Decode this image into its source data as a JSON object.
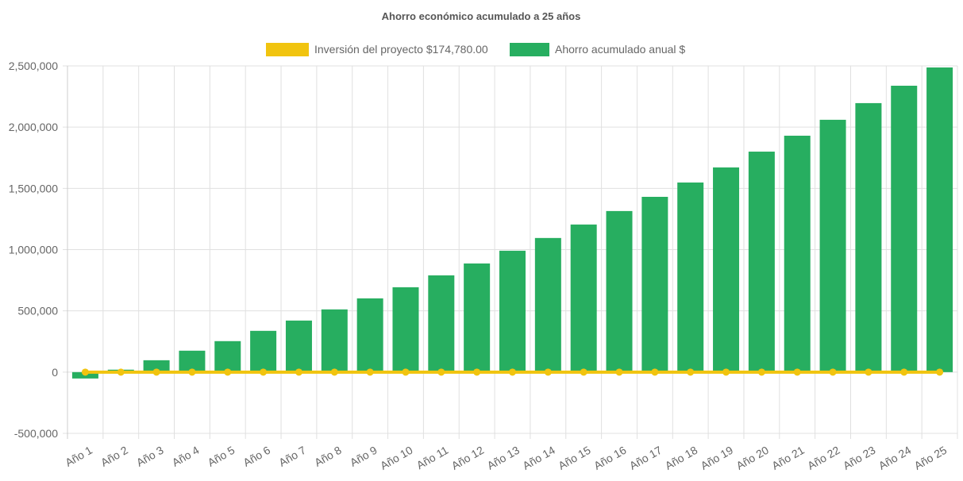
{
  "chart_data": {
    "type": "bar",
    "title": "Ahorro económico acumulado a 25 años",
    "categories": [
      "Año 1",
      "Año 2",
      "Año 3",
      "Año 4",
      "Año 5",
      "Año 6",
      "Año 7",
      "Año 8",
      "Año 9",
      "Año 10",
      "Año 11",
      "Año 12",
      "Año 13",
      "Año 14",
      "Año 15",
      "Año 16",
      "Año 17",
      "Año 18",
      "Año 19",
      "Año 20",
      "Año 21",
      "Año 22",
      "Año 23",
      "Año 24",
      "Año 25"
    ],
    "series": [
      {
        "name": "Inversión del proyecto $174,780.00",
        "type": "line",
        "color": "#f1c40f",
        "values": [
          0,
          0,
          0,
          0,
          0,
          0,
          0,
          0,
          0,
          0,
          0,
          0,
          0,
          0,
          0,
          0,
          0,
          0,
          0,
          0,
          0,
          0,
          0,
          0,
          0
        ]
      },
      {
        "name": "Ahorro acumulado anual $",
        "type": "bar",
        "color": "#27ae60",
        "values": [
          -52000,
          20000,
          97000,
          175000,
          253000,
          337000,
          421000,
          512000,
          602000,
          693000,
          790000,
          887000,
          991000,
          1095000,
          1205000,
          1315000,
          1431000,
          1548000,
          1671000,
          1800000,
          1930000,
          2060000,
          2196000,
          2338000,
          2487000
        ]
      }
    ],
    "ylim": [
      -500000,
      2500000
    ],
    "yticks": [
      -500000,
      0,
      500000,
      1000000,
      1500000,
      2000000,
      2500000
    ],
    "ytick_labels": [
      "-500,000",
      "0",
      "500,000",
      "1,000,000",
      "1,500,000",
      "2,000,000",
      "2,500,000"
    ],
    "grid": true,
    "legend": "top",
    "xlabel": "",
    "ylabel": ""
  }
}
